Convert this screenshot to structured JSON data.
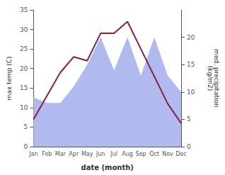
{
  "chart_data": {
    "type": "line",
    "categories": [
      "Jan",
      "Feb",
      "Mar",
      "Apr",
      "May",
      "Jun",
      "Jul",
      "Aug",
      "Sep",
      "Oct",
      "Nov",
      "Dec"
    ],
    "series": [
      {
        "type": "line",
        "color": "#8B2040",
        "values": [
          7,
          13,
          19,
          23,
          22,
          29,
          29,
          32,
          25,
          18,
          11,
          6
        ]
      },
      {
        "type": "area",
        "color": "#b0baee",
        "axis": "y2",
        "values": [
          9,
          8,
          8,
          11,
          15,
          20,
          14,
          20,
          13,
          20,
          13,
          10
        ]
      }
    ],
    "xlabel": "date (month)",
    "ylabel": "max temp (C)",
    "y2label": "med. precipitation\n(kg/m2)",
    "ylim": [
      0,
      35
    ],
    "yticks": [
      0,
      5,
      10,
      15,
      20,
      25,
      30,
      35
    ],
    "y2lim": [
      0,
      25
    ],
    "y2ticks": [
      0,
      5,
      10,
      15,
      20
    ],
    "grid": false
  }
}
